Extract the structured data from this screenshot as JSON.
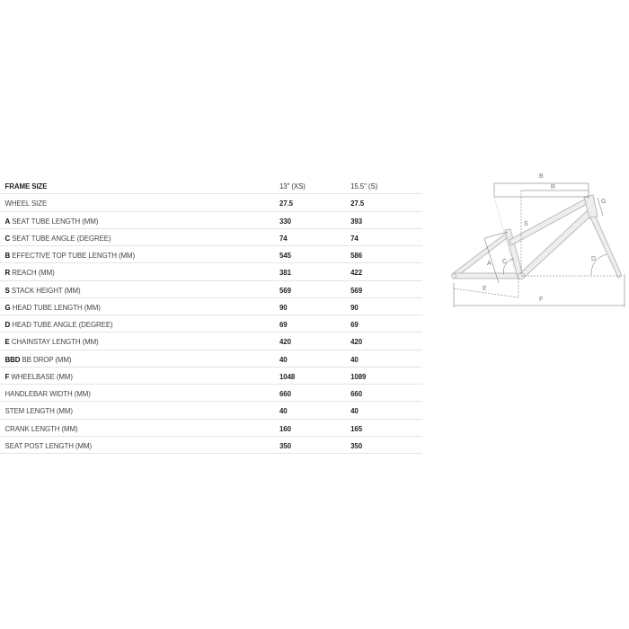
{
  "table": {
    "header": {
      "label": "FRAME SIZE",
      "sizes": [
        "13\" (XS)",
        "15.5\" (S)"
      ]
    },
    "rows": [
      {
        "code": "",
        "label": "WHEEL SIZE",
        "values": [
          "27.5",
          "27.5"
        ]
      },
      {
        "code": "A",
        "label": " SEAT TUBE LENGTH (MM)",
        "values": [
          "330",
          "393"
        ]
      },
      {
        "code": "C",
        "label": " SEAT TUBE ANGLE (DEGREE)",
        "values": [
          "74",
          "74"
        ]
      },
      {
        "code": "B",
        "label": " EFFECTIVE TOP TUBE LENGTH (MM)",
        "values": [
          "545",
          "586"
        ]
      },
      {
        "code": "R",
        "label": " REACH (MM)",
        "values": [
          "381",
          "422"
        ]
      },
      {
        "code": "S",
        "label": " STACK HEIGHT (MM)",
        "values": [
          "569",
          "569"
        ]
      },
      {
        "code": "G",
        "label": " HEAD TUBE LENGTH (MM)",
        "values": [
          "90",
          "90"
        ]
      },
      {
        "code": "D",
        "label": " HEAD TUBE ANGLE (DEGREE)",
        "values": [
          "69",
          "69"
        ]
      },
      {
        "code": "E",
        "label": " CHAINSTAY LENGTH (MM)",
        "values": [
          "420",
          "420"
        ]
      },
      {
        "code": "BBD",
        "label": " BB DROP (MM)",
        "values": [
          "40",
          "40"
        ]
      },
      {
        "code": "F",
        "label": " WHEELBASE (MM)",
        "values": [
          "1048",
          "1089"
        ]
      },
      {
        "code": "",
        "label": "HANDLEBAR WIDTH (MM)",
        "values": [
          "660",
          "660"
        ]
      },
      {
        "code": "",
        "label": "STEM LENGTH (MM)",
        "values": [
          "40",
          "40"
        ]
      },
      {
        "code": "",
        "label": "CRANK LENGTH (MM)",
        "values": [
          "160",
          "165"
        ]
      },
      {
        "code": "",
        "label": "SEAT POST LENGTH (MM)",
        "values": [
          "350",
          "350"
        ]
      }
    ]
  },
  "diagram": {
    "labels": {
      "B": "B",
      "R": "R",
      "S": "S",
      "G": "G",
      "A": "A",
      "C": "C",
      "D": "D",
      "E": "E",
      "F": "F"
    }
  }
}
